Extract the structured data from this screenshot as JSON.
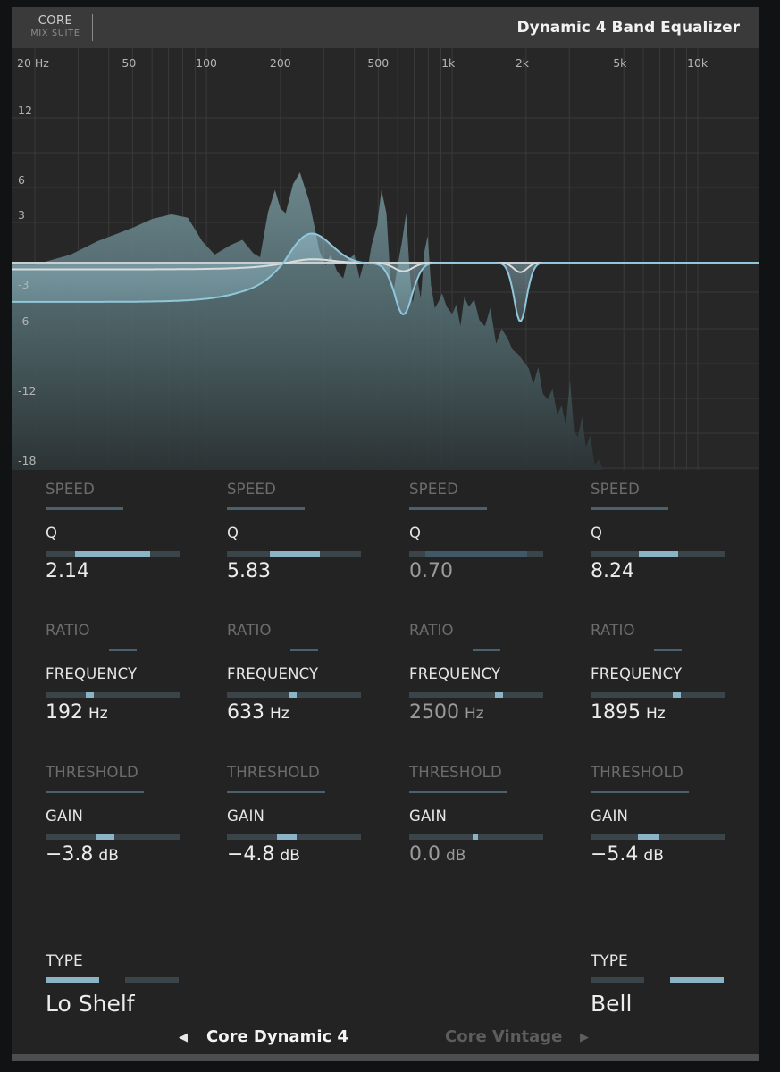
{
  "header": {
    "logo_line1": "CORE",
    "logo_line2": "MIX SUITE",
    "title": "Dynamic 4 Band Equalizer"
  },
  "graph": {
    "freq_labels": [
      {
        "text": "20 Hz",
        "hz": 20
      },
      {
        "text": "50",
        "hz": 50
      },
      {
        "text": "100",
        "hz": 100
      },
      {
        "text": "200",
        "hz": 200
      },
      {
        "text": "500",
        "hz": 500
      },
      {
        "text": "1k",
        "hz": 1000
      },
      {
        "text": "2k",
        "hz": 2000
      },
      {
        "text": "5k",
        "hz": 5000
      },
      {
        "text": "10k",
        "hz": 10000
      }
    ],
    "db_labels": [
      {
        "text": "12",
        "db": 12
      },
      {
        "text": "6",
        "db": 6
      },
      {
        "text": "3",
        "db": 3
      },
      {
        "text": "-3",
        "db": -3
      },
      {
        "text": "-6",
        "db": -6
      },
      {
        "text": "-12",
        "db": -12
      },
      {
        "text": "-18",
        "db": -18
      }
    ],
    "colors": {
      "background": "#272727",
      "grid": "#3a3a3a",
      "spectrum": "#5d7479",
      "curve_blue": "#8fc7dc",
      "curve_white": "#d8dcdc"
    }
  },
  "bands": [
    {
      "speed_label": "SPEED",
      "speed_level": 0.58,
      "q_label": "Q",
      "q_value": "2.14",
      "q_range": [
        0.22,
        0.78
      ],
      "ratio_label": "RATIO",
      "ratio_range": [
        0.47,
        0.68
      ],
      "freq_label": "FREQUENCY",
      "freq_value": "192",
      "freq_unit": "Hz",
      "freq_level": 0.33,
      "threshold_label": "THRESHOLD",
      "threshold_level": 0.73,
      "gain_label": "GAIN",
      "gain_value": "−3.8",
      "gain_unit": "dB",
      "gain_range": [
        0.38,
        0.51
      ],
      "active": true
    },
    {
      "speed_label": "SPEED",
      "speed_level": 0.58,
      "q_label": "Q",
      "q_value": "5.83",
      "q_range": [
        0.32,
        0.69
      ],
      "ratio_label": "RATIO",
      "ratio_range": [
        0.47,
        0.68
      ],
      "freq_label": "FREQUENCY",
      "freq_value": "633",
      "freq_unit": "Hz",
      "freq_level": 0.49,
      "threshold_label": "THRESHOLD",
      "threshold_level": 0.73,
      "gain_label": "GAIN",
      "gain_value": "−4.8",
      "gain_unit": "dB",
      "gain_range": [
        0.37,
        0.52
      ],
      "active": true
    },
    {
      "speed_label": "SPEED",
      "speed_level": 0.58,
      "q_label": "Q",
      "q_value": "0.70",
      "q_range": [
        0.12,
        0.88
      ],
      "ratio_label": "RATIO",
      "ratio_range": [
        0.47,
        0.68
      ],
      "freq_label": "FREQUENCY",
      "freq_value": "2500",
      "freq_unit": "Hz",
      "freq_level": 0.67,
      "threshold_label": "THRESHOLD",
      "threshold_level": 0.73,
      "gain_label": "GAIN",
      "gain_value": "0.0",
      "gain_unit": "dB",
      "gain_range": [
        0.47,
        0.51
      ],
      "active": false
    },
    {
      "speed_label": "SPEED",
      "speed_level": 0.58,
      "q_label": "Q",
      "q_value": "8.24",
      "q_range": [
        0.36,
        0.65
      ],
      "ratio_label": "RATIO",
      "ratio_range": [
        0.47,
        0.68
      ],
      "freq_label": "FREQUENCY",
      "freq_value": "1895",
      "freq_unit": "Hz",
      "freq_level": 0.64,
      "threshold_label": "THRESHOLD",
      "threshold_level": 0.73,
      "gain_label": "GAIN",
      "gain_value": "−5.4",
      "gain_unit": "dB",
      "gain_range": [
        0.35,
        0.51
      ],
      "active": true
    }
  ],
  "type_controls": {
    "low": {
      "label": "TYPE",
      "value": "Lo Shelf",
      "selected": 0
    },
    "high": {
      "label": "TYPE",
      "value": "Bell",
      "selected": 1
    }
  },
  "nav": {
    "prev_icon": "triangle-left-icon",
    "prev_arrow": "◀",
    "current": "Core Dynamic 4",
    "other": "Core Vintage",
    "next_icon": "triangle-right-icon",
    "next_arrow": "▶"
  }
}
